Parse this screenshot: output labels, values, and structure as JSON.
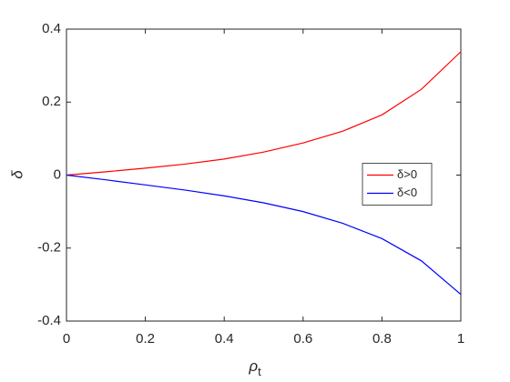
{
  "chart_data": {
    "type": "line",
    "xlabel": [
      "ρ",
      "t"
    ],
    "ylabel": "δ",
    "x": [
      0,
      0.1,
      0.2,
      0.3,
      0.4,
      0.5,
      0.6,
      0.7,
      0.8,
      0.9,
      1
    ],
    "series": [
      {
        "name": "δ>0",
        "color": "#ff0000",
        "values": [
          0,
          0.009,
          0.019,
          0.03,
          0.044,
          0.063,
          0.088,
          0.12,
          0.165,
          0.235,
          0.338
        ]
      },
      {
        "name": "δ<0",
        "color": "#0000ff",
        "values": [
          0,
          -0.013,
          -0.027,
          -0.041,
          -0.057,
          -0.076,
          -0.1,
          -0.132,
          -0.174,
          -0.235,
          -0.327
        ]
      }
    ],
    "xlim": [
      0,
      1
    ],
    "xticks": [
      0,
      0.2,
      0.4,
      0.6,
      0.8,
      1
    ],
    "ylim": [
      -0.4,
      0.4
    ],
    "yticks": [
      -0.4,
      -0.2,
      0,
      0.2,
      0.4
    ],
    "grid": false,
    "legend": "east"
  }
}
